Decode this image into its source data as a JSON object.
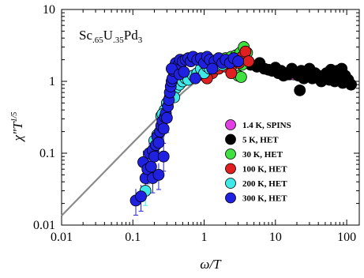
{
  "chart_data": {
    "type": "scatter",
    "xscale": "log",
    "yscale": "log",
    "xlim": [
      0.01,
      150
    ],
    "ylim": [
      0.01,
      10
    ],
    "xlabel": "ω/T",
    "ylabel_main": "χ\"T",
    "ylabel_sup": "1/5",
    "annotation": {
      "main": "Sc",
      "sub1": ".65",
      "mid": "U",
      "sub2": ".35",
      "end": "Pd",
      "sub3": "3"
    },
    "x_ticks": [
      {
        "value": 0.01,
        "label": "0.01"
      },
      {
        "value": 0.1,
        "label": "0.1"
      },
      {
        "value": 1,
        "label": "1"
      },
      {
        "value": 10,
        "label": "10"
      },
      {
        "value": 100,
        "label": "100"
      }
    ],
    "y_ticks": [
      {
        "value": 0.01,
        "label": "0.01"
      },
      {
        "value": 0.1,
        "label": "0.1"
      },
      {
        "value": 1,
        "label": "1"
      },
      {
        "value": 10,
        "label": "10"
      }
    ],
    "legend_position": "right-center",
    "series": [
      {
        "name": "1.4 K, SPINS",
        "color": "#e040e0",
        "points": [
          [
            12,
            1.35
          ],
          [
            14,
            1.3
          ],
          [
            16,
            1.25
          ],
          [
            18,
            1.25
          ]
        ]
      },
      {
        "name": "5 K, HET",
        "color": "#000000",
        "points": [
          [
            4.5,
            1.7
          ],
          [
            5.5,
            1.6
          ],
          [
            6,
            1.8
          ],
          [
            7,
            1.5
          ],
          [
            8,
            1.45
          ],
          [
            9,
            1.4
          ],
          [
            10,
            1.55
          ],
          [
            11,
            1.3
          ],
          [
            12,
            1.4
          ],
          [
            13,
            1.2
          ],
          [
            15,
            1.25
          ],
          [
            17,
            1.5
          ],
          [
            19,
            1.3
          ],
          [
            21,
            1.2
          ],
          [
            23,
            1.4
          ],
          [
            25,
            1.1
          ],
          [
            27,
            1.25
          ],
          [
            30,
            1.3
          ],
          [
            33,
            1.1
          ],
          [
            36,
            1.3
          ],
          [
            40,
            1.2
          ],
          [
            44,
            1.0
          ],
          [
            48,
            1.15
          ],
          [
            52,
            1.3
          ],
          [
            57,
            1.05
          ],
          [
            62,
            1.2
          ],
          [
            68,
            1.0
          ],
          [
            74,
            1.4
          ],
          [
            80,
            1.1
          ],
          [
            88,
            0.95
          ],
          [
            95,
            1.2
          ],
          [
            105,
            1.05
          ],
          [
            115,
            0.9
          ],
          [
            22,
            0.75
          ],
          [
            30,
            1.5
          ],
          [
            60,
            1.45
          ],
          [
            85,
            1.5
          ]
        ]
      },
      {
        "name": "30 K, HET",
        "color": "#40e040",
        "points": [
          [
            1.5,
            1.9
          ],
          [
            1.8,
            2.0
          ],
          [
            2.0,
            2.1
          ],
          [
            2.2,
            1.8
          ],
          [
            2.4,
            2.2
          ],
          [
            2.6,
            1.9
          ],
          [
            2.8,
            2.3
          ],
          [
            3.0,
            2.0
          ],
          [
            3.2,
            2.5
          ],
          [
            3.4,
            1.7
          ],
          [
            3.6,
            3.0
          ],
          [
            3.8,
            2.1
          ],
          [
            4.0,
            2.5
          ],
          [
            3.0,
            1.2
          ],
          [
            3.3,
            1.15
          ]
        ]
      },
      {
        "name": "100 K, HET",
        "color": "#e02020",
        "points": [
          [
            0.9,
            1.4
          ],
          [
            1.0,
            1.2
          ],
          [
            1.1,
            1.6
          ],
          [
            1.2,
            1.9
          ],
          [
            1.3,
            1.3
          ],
          [
            1.4,
            1.7
          ],
          [
            1.5,
            2.0
          ],
          [
            1.6,
            1.5
          ],
          [
            1.8,
            1.8
          ],
          [
            2.0,
            1.6
          ],
          [
            2.2,
            1.9
          ],
          [
            2.5,
            1.7
          ],
          [
            2.8,
            2.0
          ],
          [
            3.1,
            1.8
          ],
          [
            3.4,
            2.2
          ],
          [
            3.8,
            2.6
          ],
          [
            4.2,
            1.9
          ],
          [
            1.1,
            1.1
          ],
          [
            2.4,
            1.3
          ],
          [
            0.95,
            1.8
          ]
        ]
      },
      {
        "name": "200 K, HET",
        "color": "#40e8e8",
        "points": [
          [
            0.15,
            0.03
          ],
          [
            0.2,
            0.15
          ],
          [
            0.22,
            0.18
          ],
          [
            0.25,
            0.33
          ],
          [
            0.28,
            0.4
          ],
          [
            0.3,
            0.5
          ],
          [
            0.33,
            0.6
          ],
          [
            0.36,
            0.65
          ],
          [
            0.4,
            0.8
          ],
          [
            0.45,
            0.9
          ],
          [
            0.5,
            1.0
          ],
          [
            0.55,
            1.1
          ],
          [
            0.6,
            1.05
          ],
          [
            0.7,
            1.2
          ],
          [
            0.8,
            1.3
          ],
          [
            0.9,
            1.5
          ],
          [
            1.0,
            1.3
          ],
          [
            1.1,
            1.6
          ],
          [
            1.2,
            1.5
          ],
          [
            1.3,
            1.7
          ],
          [
            1.4,
            1.6
          ],
          [
            1.6,
            1.8
          ],
          [
            1.8,
            1.7
          ],
          [
            2.0,
            1.9
          ],
          [
            2.3,
            1.85
          ],
          [
            2.6,
            2.0
          ],
          [
            3.0,
            1.9
          ],
          [
            0.38,
            0.6
          ],
          [
            0.26,
            0.35
          ]
        ]
      },
      {
        "name": "300 K, HET",
        "color": "#2020e0",
        "points": [
          [
            0.11,
            0.022
          ],
          [
            0.13,
            0.025
          ],
          [
            0.14,
            0.075
          ],
          [
            0.15,
            0.045
          ],
          [
            0.16,
            0.06
          ],
          [
            0.17,
            0.1
          ],
          [
            0.18,
            0.065
          ],
          [
            0.19,
            0.11
          ],
          [
            0.2,
            0.09
          ],
          [
            0.21,
            0.13
          ],
          [
            0.22,
            0.17
          ],
          [
            0.23,
            0.14
          ],
          [
            0.24,
            0.2
          ],
          [
            0.25,
            0.24
          ],
          [
            0.26,
            0.28
          ],
          [
            0.27,
            0.22
          ],
          [
            0.28,
            0.32
          ],
          [
            0.29,
            0.36
          ],
          [
            0.3,
            0.31
          ],
          [
            0.31,
            0.45
          ],
          [
            0.32,
            0.55
          ],
          [
            0.33,
            0.7
          ],
          [
            0.34,
            0.85
          ],
          [
            0.35,
            1.0
          ],
          [
            0.36,
            1.1
          ],
          [
            0.37,
            1.4
          ],
          [
            0.38,
            1.6
          ],
          [
            0.4,
            1.8
          ],
          [
            0.42,
            1.5
          ],
          [
            0.44,
            1.7
          ],
          [
            0.46,
            2.0
          ],
          [
            0.5,
            1.9
          ],
          [
            0.55,
            2.0
          ],
          [
            0.6,
            2.1
          ],
          [
            0.65,
            1.9
          ],
          [
            0.7,
            2.2
          ],
          [
            0.8,
            2.0
          ],
          [
            0.9,
            2.1
          ],
          [
            1.0,
            1.8
          ],
          [
            1.1,
            2.2
          ],
          [
            1.2,
            2.0
          ],
          [
            1.4,
            1.9
          ],
          [
            1.6,
            2.1
          ],
          [
            1.8,
            1.8
          ],
          [
            2.0,
            2.0
          ],
          [
            2.3,
            1.8
          ],
          [
            2.6,
            2.1
          ],
          [
            0.19,
            0.045
          ],
          [
            0.23,
            0.05
          ],
          [
            0.27,
            0.09
          ],
          [
            0.35,
            1.5
          ],
          [
            0.45,
            1.25
          ],
          [
            0.52,
            1.35
          ],
          [
            0.75,
            1.1
          ],
          [
            1.3,
            1.5
          ],
          [
            3.0,
            1.9
          ]
        ]
      }
    ],
    "fit_line": {
      "color": "#8c8c8c",
      "points": [
        [
          0.01,
          0.0135
        ],
        [
          0.1,
          0.14
        ],
        [
          0.5,
          0.7
        ],
        [
          1,
          1.25
        ],
        [
          2,
          1.75
        ],
        [
          3,
          1.9
        ],
        [
          5,
          1.8
        ],
        [
          10,
          1.6
        ],
        [
          30,
          1.3
        ],
        [
          100,
          1.02
        ],
        [
          120,
          0.98
        ]
      ]
    }
  }
}
